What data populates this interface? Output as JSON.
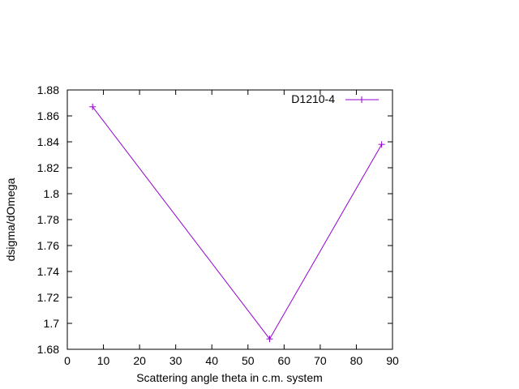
{
  "chart_data": {
    "type": "line",
    "title": "",
    "xlabel": "Scattering angle theta in c.m. system",
    "ylabel": "dsigma/dOmega",
    "xlim": [
      0,
      90
    ],
    "ylim": [
      1.68,
      1.88
    ],
    "xticks": [
      0,
      10,
      20,
      30,
      40,
      50,
      60,
      70,
      80,
      90
    ],
    "xtick_labels": [
      "0",
      "10",
      "20",
      "30",
      "40",
      "50",
      "60",
      "70",
      "80",
      "90"
    ],
    "yticks": [
      1.68,
      1.7,
      1.72,
      1.74,
      1.76,
      1.78,
      1.8,
      1.82,
      1.84,
      1.86,
      1.88
    ],
    "ytick_labels": [
      "1.68",
      "1.7",
      "1.72",
      "1.74",
      "1.76",
      "1.78",
      "1.8",
      "1.82",
      "1.84",
      "1.86",
      "1.88"
    ],
    "grid": false,
    "legend_position": "top-right",
    "series": [
      {
        "name": "D1210-4",
        "color": "#9400d3",
        "marker": "plus",
        "x": [
          7,
          56,
          87
        ],
        "y": [
          1.867,
          1.688,
          1.838
        ]
      }
    ]
  }
}
